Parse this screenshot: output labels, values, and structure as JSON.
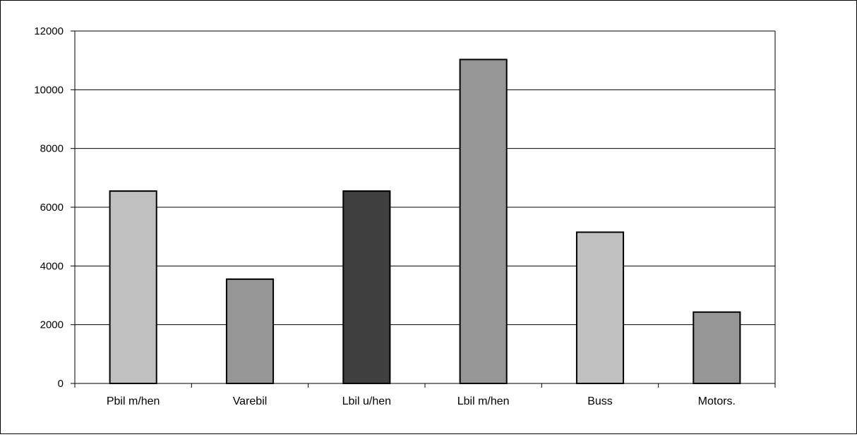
{
  "chart_data": {
    "type": "bar",
    "categories": [
      "Pbil m/hen",
      "Varebil",
      "Lbil u/hen",
      "Lbil m/hen",
      "Buss",
      "Motors."
    ],
    "values": [
      6550,
      3550,
      6550,
      11030,
      5150,
      2430
    ],
    "bar_colors": [
      "#c0c0c0",
      "#969696",
      "#404040",
      "#969696",
      "#c0c0c0",
      "#969696"
    ],
    "ylim": [
      0,
      12000
    ],
    "yticks": [
      0,
      2000,
      4000,
      6000,
      8000,
      10000,
      12000
    ],
    "grid": true,
    "title": "",
    "xlabel": "",
    "ylabel": ""
  }
}
